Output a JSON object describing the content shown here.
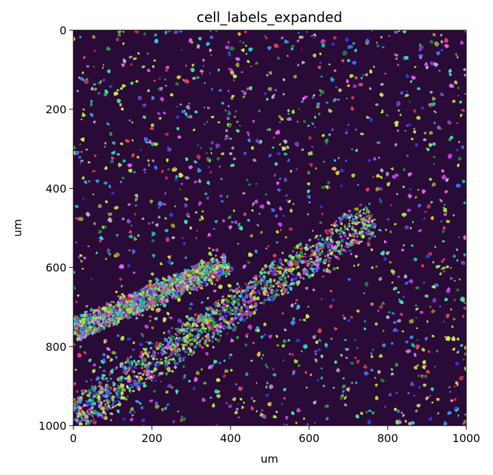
{
  "chart_data": {
    "type": "heatmap",
    "title": "cell_labels_expanded",
    "xlabel": "um",
    "ylabel": "um",
    "xlim": [
      0,
      1000
    ],
    "ylim": [
      1000,
      0
    ],
    "y_axis_inverted": true,
    "x_ticks": [
      0,
      200,
      400,
      600,
      800,
      1000
    ],
    "y_ticks": [
      0,
      200,
      400,
      600,
      800,
      1000
    ],
    "x_tick_labels": [
      "0",
      "200",
      "400",
      "600",
      "800",
      "1000"
    ],
    "y_tick_labels": [
      "0",
      "200",
      "400",
      "600",
      "800",
      "1000"
    ],
    "grid": false,
    "legend": "none",
    "content": "segmented cell label image, each cell drawn in a random color over a dark background",
    "background_color": "#2a0a36",
    "label_colors": [
      "#2a3bd6",
      "#3b6cf0",
      "#a7e03a",
      "#c9e64a",
      "#8f9a3c",
      "#c040e0",
      "#e060f0",
      "#2ec9d6",
      "#1bb8a8",
      "#1e7a3a",
      "#2e9a4a",
      "#c0304a",
      "#e0405a",
      "#a090b0",
      "#b8a8c8",
      "#7040c0",
      "#40e0a0",
      "#d0c040",
      "#3d8ae0",
      "#9fd060"
    ],
    "bands": [
      {
        "from": [
          0,
          760
        ],
        "to": [
          395,
          590
        ],
        "half_width_um": 32,
        "name": ""
      },
      {
        "from": [
          0,
          975
        ],
        "to": [
          760,
          470
        ],
        "half_width_um": 48,
        "name": ""
      }
    ],
    "scattered_cells_approx": 1500,
    "band_cells_approx": 2800
  }
}
